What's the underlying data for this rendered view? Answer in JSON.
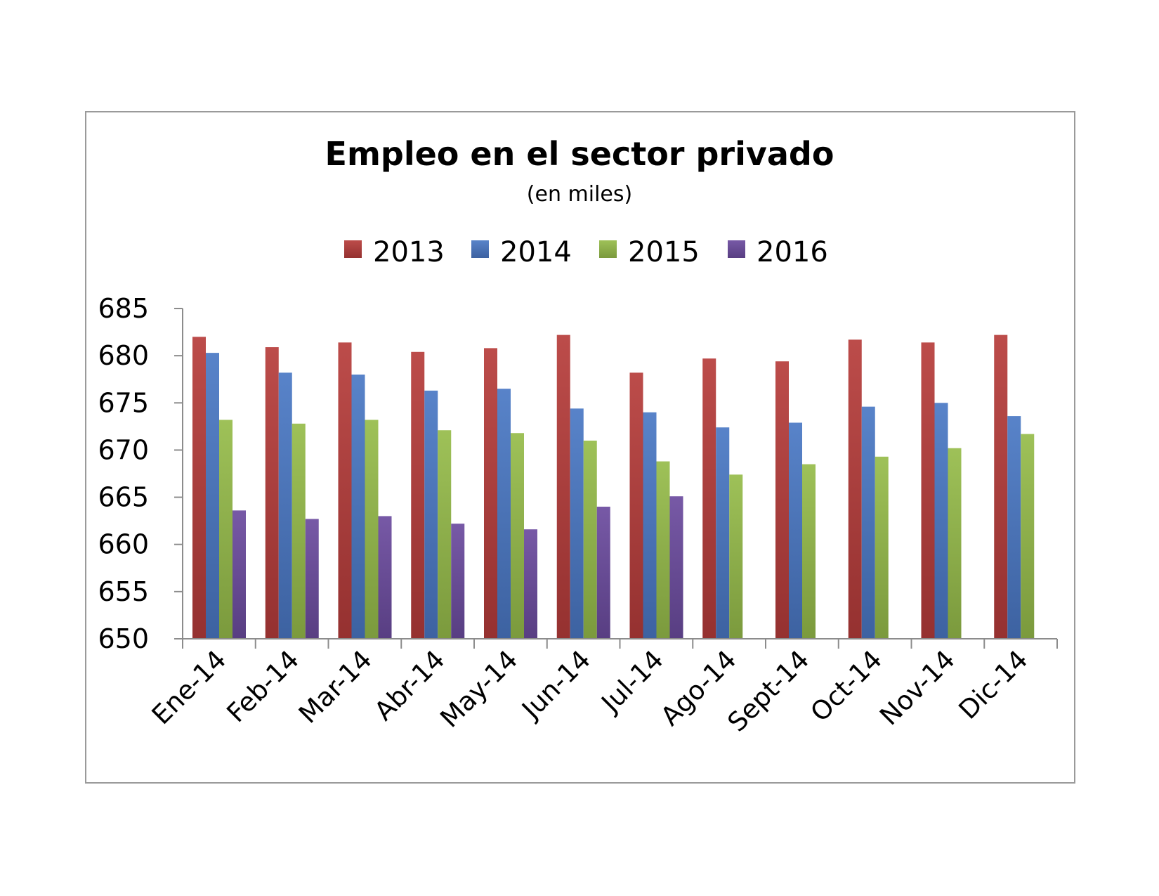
{
  "chart_data": {
    "type": "bar",
    "title": "Empleo en el sector privado",
    "subtitle": "(en miles)",
    "xlabel": "",
    "ylabel": "",
    "categories": [
      "Ene-14",
      "Feb-14",
      "Mar-14",
      "Abr-14",
      "May-14",
      "Jun-14",
      "Jul-14",
      "Ago-14",
      "Sept-14",
      "Oct-14",
      "Nov-14",
      "Dic-14"
    ],
    "ylim": [
      650,
      685
    ],
    "yticks": [
      650,
      655,
      660,
      665,
      670,
      675,
      680,
      685
    ],
    "grid": false,
    "legend_position": "top",
    "series": [
      {
        "name": "2013",
        "color": "#b63c3a",
        "values": [
          682.0,
          680.9,
          681.4,
          680.4,
          680.8,
          682.2,
          678.2,
          679.7,
          679.4,
          681.7,
          681.4,
          682.2
        ]
      },
      {
        "name": "2014",
        "color": "#4a78c4",
        "values": [
          680.3,
          678.2,
          678.0,
          676.3,
          676.5,
          674.4,
          674.0,
          672.4,
          672.9,
          674.6,
          675.0,
          673.6
        ]
      },
      {
        "name": "2015",
        "color": "#96bc4a",
        "values": [
          673.2,
          672.8,
          673.2,
          672.1,
          671.8,
          671.0,
          668.8,
          667.4,
          668.5,
          669.3,
          670.2,
          671.7
        ]
      },
      {
        "name": "2016",
        "color": "#6b4b9e",
        "values": [
          663.6,
          662.7,
          663.0,
          662.2,
          661.6,
          664.0,
          665.1,
          null,
          null,
          null,
          null,
          null
        ]
      }
    ]
  }
}
